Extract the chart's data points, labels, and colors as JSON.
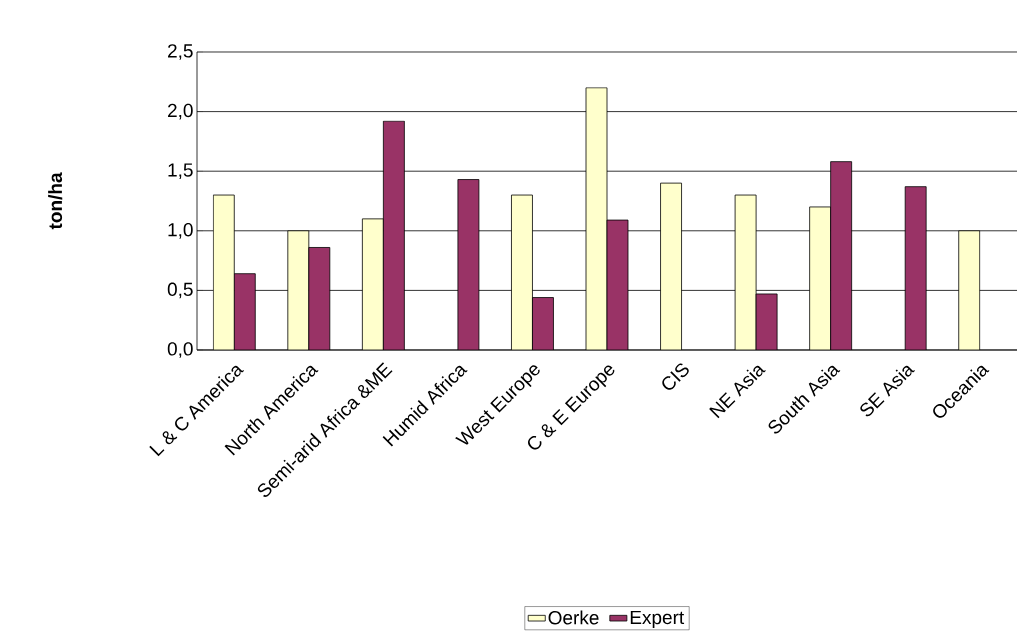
{
  "chart_data": {
    "type": "bar",
    "ylabel": "ton/ha",
    "categories": [
      "L & C America",
      "North America",
      "Semi-arid Africa &ME",
      "Humid Africa",
      "West Europe",
      "C & E Europe",
      "CIS",
      "NE Asia",
      "South Asia",
      "SE Asia",
      "Oceania"
    ],
    "series": [
      {
        "name": "Oerke",
        "color": "#ffffcc",
        "values": [
          1.3,
          1.0,
          1.1,
          null,
          1.3,
          2.2,
          1.4,
          1.3,
          1.2,
          null,
          1.0
        ]
      },
      {
        "name": "Expert",
        "color": "#993366",
        "values": [
          0.64,
          0.86,
          1.92,
          1.43,
          0.44,
          1.09,
          null,
          0.47,
          1.58,
          1.37,
          null
        ]
      }
    ],
    "ylim": [
      0,
      2.5
    ],
    "yticks": [
      {
        "value": 0,
        "label": "0,0"
      },
      {
        "value": 0.5,
        "label": "0,5"
      },
      {
        "value": 1,
        "label": "1,0"
      },
      {
        "value": 1.5,
        "label": "1,5"
      },
      {
        "value": 2,
        "label": "2,0"
      },
      {
        "value": 2.5,
        "label": "2,5"
      }
    ],
    "grid": "y",
    "legend": "bottom"
  }
}
